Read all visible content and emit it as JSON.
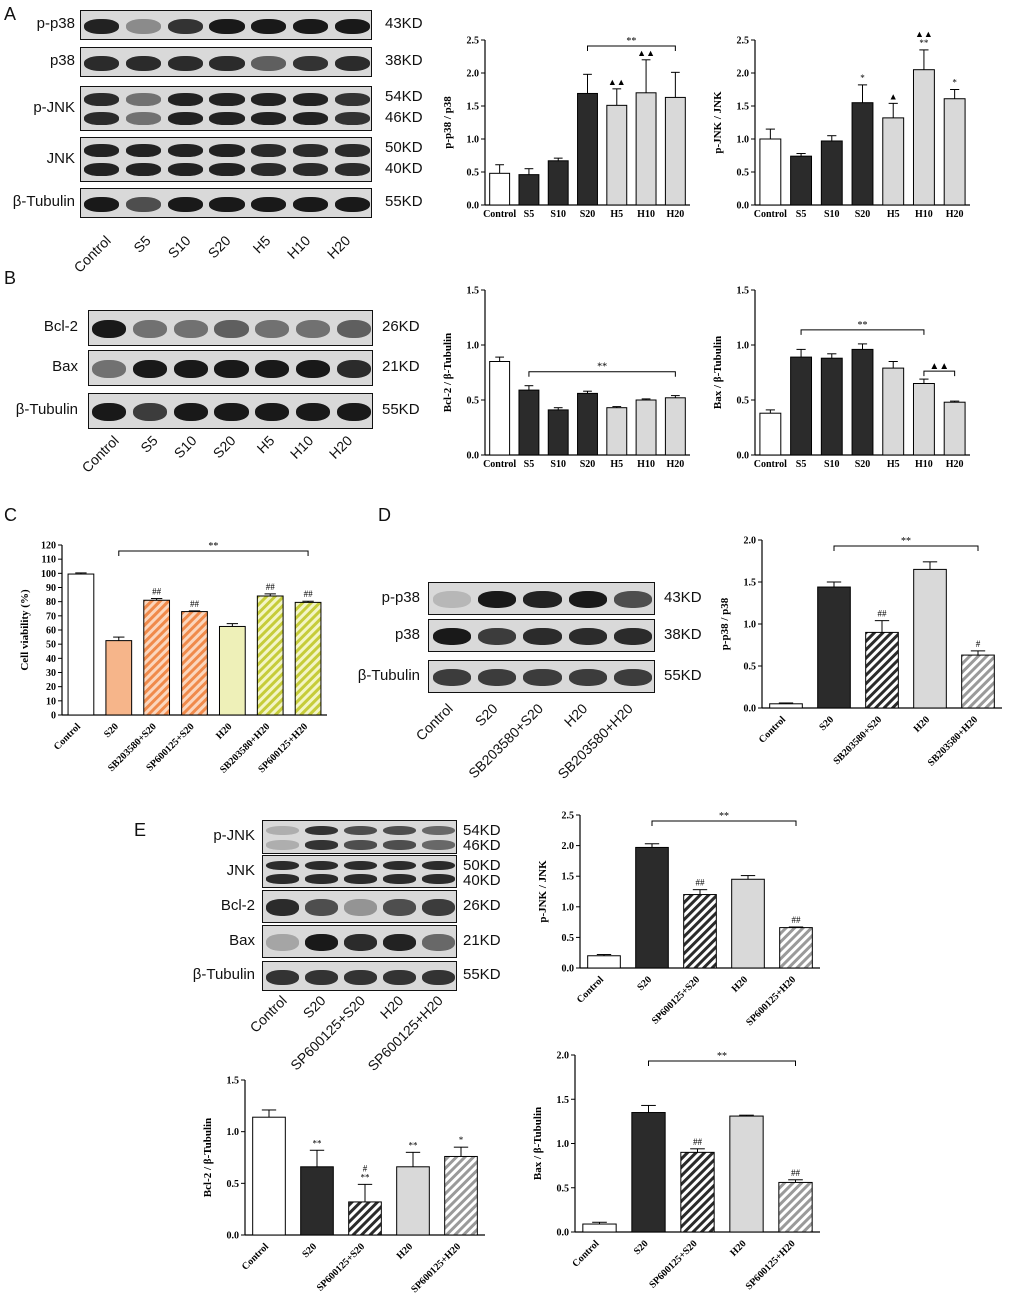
{
  "panels": {
    "A": {
      "label": "A",
      "rows": [
        {
          "name": "p-p38",
          "kd": [
            "43KD"
          ],
          "bands": 1,
          "intensity": [
            0.95,
            0.35,
            0.85,
            1,
            1,
            1,
            1
          ]
        },
        {
          "name": "p38",
          "kd": [
            "38KD"
          ],
          "bands": 1,
          "intensity": [
            0.9,
            0.9,
            0.9,
            0.9,
            0.6,
            0.85,
            0.9
          ]
        },
        {
          "name": "p-JNK",
          "kd": [
            "54KD",
            "46KD"
          ],
          "bands": 2,
          "intensity": [
            0.9,
            0.5,
            0.95,
            0.95,
            0.95,
            0.95,
            0.85
          ]
        },
        {
          "name": "JNK",
          "kd": [
            "50KD",
            "40KD"
          ],
          "bands": 2,
          "intensity": [
            0.95,
            0.95,
            0.95,
            0.95,
            0.9,
            0.9,
            0.9
          ]
        },
        {
          "name": "β-Tubulin",
          "kd": [
            "55KD"
          ],
          "bands": 1,
          "intensity": [
            1,
            0.7,
            1,
            1,
            1,
            1,
            1
          ]
        }
      ],
      "lanes": [
        "Control",
        "S5",
        "S10",
        "S20",
        "H5",
        "H10",
        "H20"
      ]
    },
    "B": {
      "label": "B",
      "rows": [
        {
          "name": "Bcl-2",
          "kd": [
            "26KD"
          ],
          "bands": 1,
          "intensity": [
            1,
            0.5,
            0.5,
            0.6,
            0.5,
            0.5,
            0.6
          ]
        },
        {
          "name": "Bax",
          "kd": [
            "21KD"
          ],
          "bands": 1,
          "intensity": [
            0.5,
            1,
            1,
            1,
            1,
            1,
            0.9
          ]
        },
        {
          "name": "β-Tubulin",
          "kd": [
            "55KD"
          ],
          "bands": 1,
          "intensity": [
            1,
            0.8,
            1,
            1,
            1,
            1,
            1
          ]
        }
      ],
      "lanes": [
        "Control",
        "S5",
        "S10",
        "S20",
        "H5",
        "H10",
        "H20"
      ]
    },
    "C": {
      "label": "C"
    },
    "D": {
      "label": "D",
      "rows": [
        {
          "name": "p-p38",
          "kd": [
            "43KD"
          ],
          "bands": 1,
          "intensity": [
            0.1,
            1,
            0.95,
            1,
            0.7
          ]
        },
        {
          "name": "p38",
          "kd": [
            "38KD"
          ],
          "bands": 1,
          "intensity": [
            1,
            0.8,
            0.9,
            0.9,
            0.9
          ]
        },
        {
          "name": "β-Tubulin",
          "kd": [
            "55KD"
          ],
          "bands": 1,
          "intensity": [
            0.8,
            0.8,
            0.8,
            0.8,
            0.8
          ]
        }
      ],
      "lanes": [
        "Control",
        "S20",
        "SB203580+S20",
        "H20",
        "SB203580+H20"
      ]
    },
    "E": {
      "label": "E",
      "rows": [
        {
          "name": "p-JNK",
          "kd": [
            "54KD",
            "46KD"
          ],
          "bands": 2,
          "intensity": [
            0.15,
            0.85,
            0.7,
            0.7,
            0.55
          ]
        },
        {
          "name": "JNK",
          "kd": [
            "50KD",
            "40KD"
          ],
          "bands": 2,
          "intensity": [
            0.9,
            0.9,
            0.9,
            0.9,
            0.9
          ]
        },
        {
          "name": "Bcl-2",
          "kd": [
            "26KD"
          ],
          "bands": 1,
          "intensity": [
            0.9,
            0.7,
            0.3,
            0.7,
            0.8
          ]
        },
        {
          "name": "Bax",
          "kd": [
            "21KD"
          ],
          "bands": 1,
          "intensity": [
            0.2,
            1,
            0.9,
            0.95,
            0.55
          ]
        },
        {
          "name": "β-Tubulin",
          "kd": [
            "55KD"
          ],
          "bands": 1,
          "intensity": [
            0.85,
            0.85,
            0.85,
            0.85,
            0.85
          ]
        }
      ],
      "lanes": [
        "Control",
        "S20",
        "SP600125+S20",
        "H20",
        "SP600125+H20"
      ]
    }
  },
  "chart_data": [
    {
      "id": "A1",
      "type": "bar",
      "ylabel": "p-p38 / p38",
      "ylim": [
        0,
        2.5
      ],
      "yticks": [
        "0.0",
        "0.5",
        "1.0",
        "1.5",
        "2.0",
        "2.5"
      ],
      "categories": [
        "Control",
        "S5",
        "S10",
        "S20",
        "H5",
        "H10",
        "H20"
      ],
      "values": [
        0.48,
        0.46,
        0.67,
        1.69,
        1.51,
        1.7,
        1.63
      ],
      "errors": [
        0.13,
        0.09,
        0.04,
        0.29,
        0.25,
        0.5,
        0.38
      ],
      "fills": [
        "white",
        "dark",
        "dark",
        "dark",
        "light",
        "light",
        "light"
      ],
      "annotations": [
        "",
        "",
        "",
        "",
        "▲▲",
        "▲▲",
        ""
      ],
      "brackets": [
        {
          "from": 3,
          "to": 6,
          "label": "**"
        }
      ]
    },
    {
      "id": "A2",
      "type": "bar",
      "ylabel": "p-JNK / JNK",
      "ylim": [
        0,
        2.5
      ],
      "yticks": [
        "0.0",
        "0.5",
        "1.0",
        "1.5",
        "2.0",
        "2.5"
      ],
      "categories": [
        "Control",
        "S5",
        "S10",
        "S20",
        "H5",
        "H10",
        "H20"
      ],
      "values": [
        1.0,
        0.74,
        0.97,
        1.55,
        1.32,
        2.05,
        1.61
      ],
      "errors": [
        0.15,
        0.04,
        0.08,
        0.27,
        0.22,
        0.3,
        0.14
      ],
      "fills": [
        "white",
        "dark",
        "dark",
        "dark",
        "light",
        "light",
        "light"
      ],
      "annotations": [
        "",
        "",
        "",
        "*",
        "▲",
        "▲▲\n**",
        "*"
      ],
      "brackets": []
    },
    {
      "id": "B1",
      "type": "bar",
      "ylabel": "Bcl-2 / β-Tubulin",
      "ylim": [
        0,
        1.5
      ],
      "yticks": [
        "0.0",
        "0.5",
        "1.0",
        "1.5"
      ],
      "categories": [
        "Control",
        "S5",
        "S10",
        "S20",
        "H5",
        "H10",
        "H20"
      ],
      "values": [
        0.85,
        0.59,
        0.41,
        0.56,
        0.43,
        0.5,
        0.52
      ],
      "errors": [
        0.04,
        0.04,
        0.02,
        0.02,
        0.01,
        0.01,
        0.02
      ],
      "fills": [
        "white",
        "dark",
        "dark",
        "dark",
        "light",
        "light",
        "light"
      ],
      "annotations": [
        "",
        "",
        "",
        "",
        "",
        "",
        ""
      ],
      "brackets": [
        {
          "from": 1,
          "to": 6,
          "label": "**"
        }
      ]
    },
    {
      "id": "B2",
      "type": "bar",
      "ylabel": "Bax / β-Tubulin",
      "ylim": [
        0,
        1.5
      ],
      "yticks": [
        "0.0",
        "0.5",
        "1.0",
        "1.5"
      ],
      "categories": [
        "Control",
        "S5",
        "S10",
        "S20",
        "H5",
        "H10",
        "H20"
      ],
      "values": [
        0.38,
        0.89,
        0.88,
        0.96,
        0.79,
        0.65,
        0.48
      ],
      "errors": [
        0.03,
        0.07,
        0.04,
        0.05,
        0.06,
        0.04,
        0.01
      ],
      "fills": [
        "white",
        "dark",
        "dark",
        "dark",
        "light",
        "light",
        "light"
      ],
      "annotations": [
        "",
        "",
        "",
        "",
        "",
        "",
        ""
      ],
      "brackets": [
        {
          "from": 1,
          "to": 5,
          "label": "**"
        },
        {
          "from": 5,
          "to": 6,
          "label": "▲▲"
        }
      ]
    },
    {
      "id": "C",
      "type": "bar",
      "ylabel": "Cell viability (%)",
      "ylim": [
        0,
        120
      ],
      "yticks": [
        "0",
        "10",
        "20",
        "30",
        "40",
        "50",
        "60",
        "70",
        "80",
        "90",
        "100",
        "110",
        "120"
      ],
      "categories": [
        "Control",
        "S20",
        "SB203580+S20",
        "SP600125+S20",
        "H20",
        "SB203580+H20",
        "SP600125+H20"
      ],
      "values": [
        99.5,
        52.5,
        81.0,
        73.0,
        62.5,
        84.0,
        79.5
      ],
      "errors": [
        0.8,
        2.5,
        1.2,
        0.5,
        2.0,
        1.5,
        0.8
      ],
      "fills": [
        "white",
        "orange",
        "orange-hatch",
        "orange-hatch",
        "yellow",
        "yellow-hatch",
        "yellow-hatch"
      ],
      "annotations": [
        "",
        "",
        "##",
        "##",
        "",
        "##",
        "##"
      ],
      "brackets": [
        {
          "from": 1,
          "to": 6,
          "label": "**"
        }
      ]
    },
    {
      "id": "D",
      "type": "bar",
      "ylabel": "p-p38 / p38",
      "ylim": [
        0,
        2.0
      ],
      "yticks": [
        "0.0",
        "0.5",
        "1.0",
        "1.5",
        "2.0"
      ],
      "categories": [
        "Control",
        "S20",
        "SB203580+S20",
        "H20",
        "SB203580+H20"
      ],
      "values": [
        0.05,
        1.44,
        0.9,
        1.65,
        0.63
      ],
      "errors": [
        0.01,
        0.06,
        0.14,
        0.09,
        0.05
      ],
      "fills": [
        "white",
        "dark",
        "dark-hatch",
        "light",
        "light-hatch"
      ],
      "annotations": [
        "",
        "",
        "##",
        "",
        "#"
      ],
      "brackets": [
        {
          "from": 1,
          "to": 4,
          "label": "**"
        }
      ]
    },
    {
      "id": "E1",
      "type": "bar",
      "ylabel": "p-JNK / JNK",
      "ylim": [
        0,
        2.5
      ],
      "yticks": [
        "0.0",
        "0.5",
        "1.0",
        "1.5",
        "2.0",
        "2.5"
      ],
      "categories": [
        "Control",
        "S20",
        "SP600125+S20",
        "H20",
        "SP600125+H20"
      ],
      "values": [
        0.2,
        1.97,
        1.2,
        1.45,
        0.66
      ],
      "errors": [
        0.02,
        0.06,
        0.08,
        0.06,
        0.01
      ],
      "fills": [
        "white",
        "dark",
        "dark-hatch",
        "light",
        "light-hatch"
      ],
      "annotations": [
        "",
        "",
        "##",
        "",
        "##"
      ],
      "brackets": [
        {
          "from": 1,
          "to": 4,
          "label": "**"
        }
      ]
    },
    {
      "id": "E2",
      "type": "bar",
      "ylabel": "Bcl-2 / β-Tubulin",
      "ylim": [
        0,
        1.5
      ],
      "yticks": [
        "0.0",
        "0.5",
        "1.0",
        "1.5"
      ],
      "categories": [
        "Control",
        "S20",
        "SP600125+S20",
        "H20",
        "SP600125+H20"
      ],
      "values": [
        1.14,
        0.66,
        0.32,
        0.66,
        0.76
      ],
      "errors": [
        0.07,
        0.16,
        0.17,
        0.14,
        0.09
      ],
      "fills": [
        "white",
        "dark",
        "dark-hatch",
        "light",
        "light-hatch"
      ],
      "annotations": [
        "",
        "**",
        "#\n**",
        "**",
        "*"
      ],
      "brackets": []
    },
    {
      "id": "E3",
      "type": "bar",
      "ylabel": "Bax / β-Tubulin",
      "ylim": [
        0,
        2.0
      ],
      "yticks": [
        "0.0",
        "0.5",
        "1.0",
        "1.5",
        "2.0"
      ],
      "categories": [
        "Control",
        "S20",
        "SP600125+S20",
        "H20",
        "SP600125+H20"
      ],
      "values": [
        0.09,
        1.35,
        0.9,
        1.31,
        0.56
      ],
      "errors": [
        0.02,
        0.08,
        0.04,
        0.01,
        0.03
      ],
      "fills": [
        "white",
        "dark",
        "dark-hatch",
        "light",
        "light-hatch"
      ],
      "annotations": [
        "",
        "",
        "##",
        "",
        "##"
      ],
      "brackets": [
        {
          "from": 1,
          "to": 4,
          "label": "**"
        }
      ]
    }
  ]
}
